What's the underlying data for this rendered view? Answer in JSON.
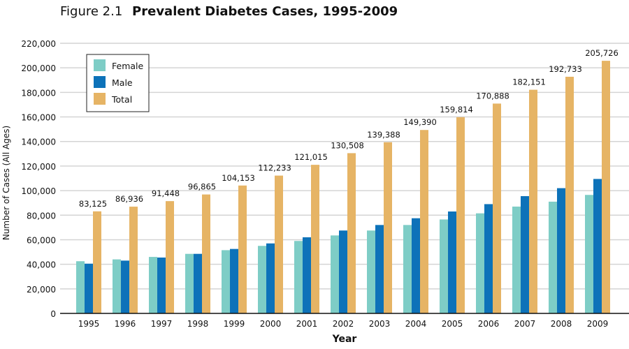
{
  "chart_data": {
    "type": "bar",
    "figure_label": "Figure 2.1",
    "title": "Prevalent Diabetes Cases, 1995-2009",
    "xlabel": "Year",
    "ylabel": "Number of Cases (All Ages)",
    "ylim": [
      0,
      220000
    ],
    "yticks": [
      "0",
      "20,000",
      "40,000",
      "60,000",
      "80,000",
      "100,000",
      "120,000",
      "140,000",
      "160,000",
      "180,000",
      "200,000",
      "220,000"
    ],
    "ytick_values": [
      0,
      20000,
      40000,
      60000,
      80000,
      100000,
      120000,
      140000,
      160000,
      180000,
      200000,
      220000
    ],
    "grid": true,
    "legend_position": "top-left",
    "categories": [
      "1995",
      "1996",
      "1997",
      "1998",
      "1999",
      "2000",
      "2001",
      "2002",
      "2003",
      "2004",
      "2005",
      "2006",
      "2007",
      "2008",
      "2009"
    ],
    "series": [
      {
        "name": "Female",
        "color": "#7ecdc6",
        "values": [
          42500,
          44000,
          46000,
          48500,
          51500,
          55000,
          59000,
          63500,
          67500,
          72000,
          76500,
          81500,
          87000,
          91000,
          96500
        ]
      },
      {
        "name": "Male",
        "color": "#0d72b9",
        "values": [
          40500,
          43000,
          45500,
          48500,
          52500,
          57000,
          62000,
          67500,
          72000,
          77500,
          83000,
          89000,
          95500,
          102000,
          109500
        ]
      },
      {
        "name": "Total",
        "color": "#e6b465",
        "values": [
          83125,
          86936,
          91448,
          96865,
          104153,
          112233,
          121015,
          130508,
          139388,
          149390,
          159814,
          170888,
          182151,
          192733,
          205726
        ]
      }
    ],
    "data_labels": [
      "83,125",
      "86,936",
      "91,448",
      "96,865",
      "104,153",
      "112,233",
      "121,015",
      "130,508",
      "139,388",
      "149,390",
      "159,814",
      "170,888",
      "182,151",
      "192,733",
      "205,726"
    ]
  }
}
